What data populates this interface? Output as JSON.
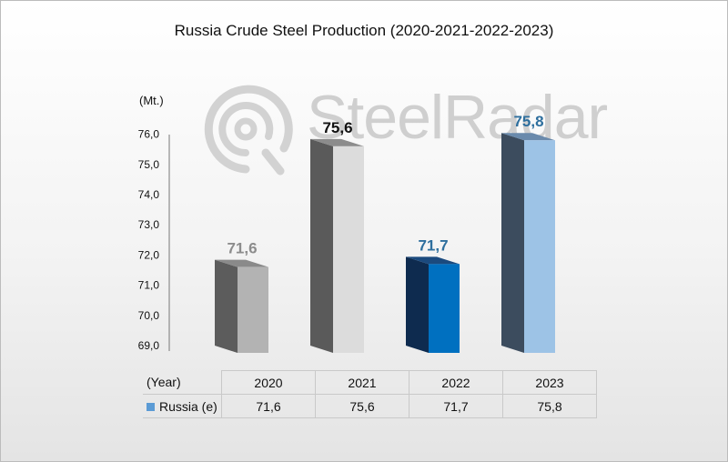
{
  "chart_data": {
    "type": "bar",
    "title": "Russia Crude Steel Production (2020-2021-2022-2023)",
    "ylabel": "(Mt.)",
    "categories": [
      "2020",
      "2021",
      "2022",
      "2023"
    ],
    "series": [
      {
        "name": "Russia (e)",
        "values": [
          71.6,
          75.6,
          71.7,
          75.8
        ]
      }
    ],
    "value_labels": [
      "71,6",
      "75,6",
      "71,7",
      "75,8"
    ],
    "ylim": [
      69.0,
      76.0
    ],
    "yticks": [
      "69,0",
      "70,0",
      "71,0",
      "72,0",
      "73,0",
      "74,0",
      "75,0",
      "76,0"
    ],
    "grid": false,
    "style": "3d-column",
    "bar_colors": [
      {
        "front": "#b3b3b3",
        "side": "#5c5c5c",
        "top": "#8a8a8a",
        "label": "#8c8c8c"
      },
      {
        "front": "#dcdcdc",
        "side": "#5a5a5a",
        "top": "#8c8c8c",
        "label": "#111111"
      },
      {
        "front": "#0070c0",
        "side": "#0e2b4f",
        "top": "#1b4a7e",
        "label": "#2e6f9e"
      },
      {
        "front": "#9dc3e6",
        "side": "#3c4c5e",
        "top": "#6a8aac",
        "label": "#2e6f9e"
      }
    ]
  },
  "table": {
    "header_label": "(Year)",
    "row_label": "Russia (e)",
    "years": [
      "2020",
      "2021",
      "2022",
      "2023"
    ],
    "values": [
      "71,6",
      "75,6",
      "71,7",
      "75,8"
    ],
    "legend_color": "#5b9bd5"
  },
  "watermark": {
    "text": "SteelRadar",
    "color": "#cfcfcf"
  }
}
